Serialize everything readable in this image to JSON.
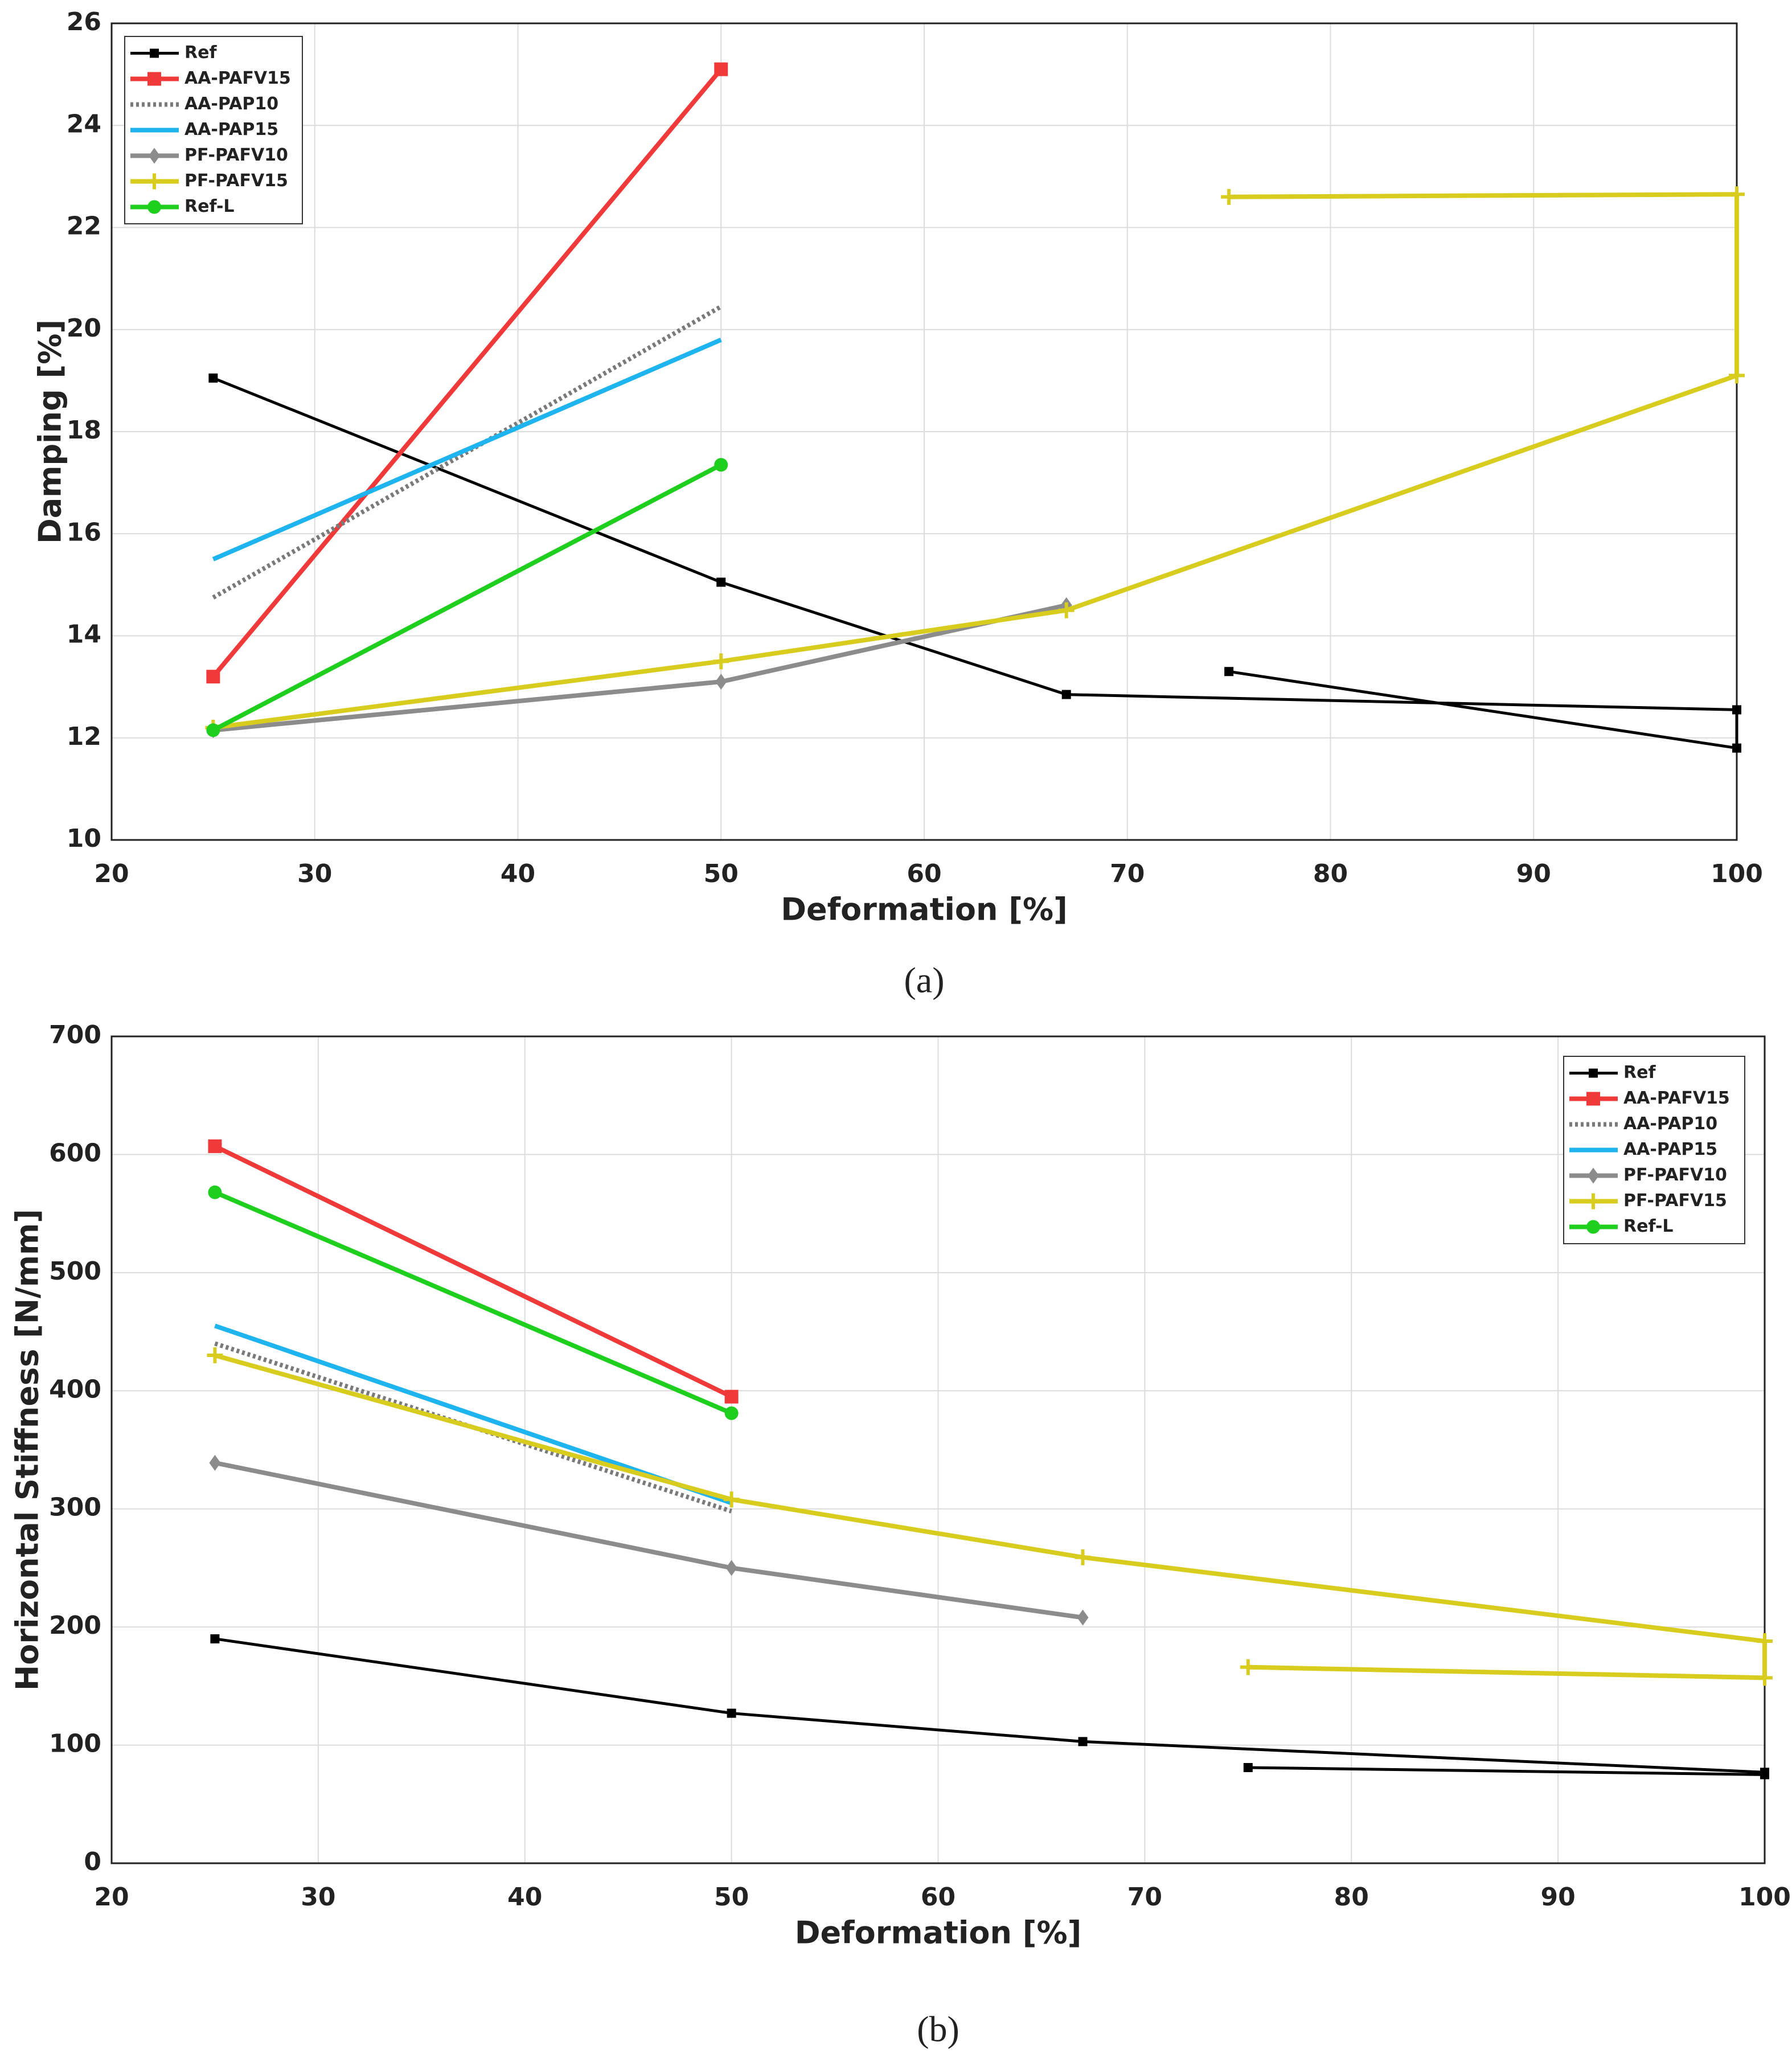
{
  "chart_data": [
    {
      "type": "line",
      "caption": "(a)",
      "xlabel": "Deformation [%]",
      "ylabel": "Damping [%]",
      "xlim": [
        20,
        100
      ],
      "xticks": [
        20,
        30,
        40,
        50,
        60,
        70,
        80,
        90,
        100
      ],
      "ylim": [
        10,
        26
      ],
      "yticks": [
        10,
        12,
        14,
        16,
        18,
        20,
        22,
        24,
        26
      ],
      "grid": true,
      "legend": "upper left",
      "series": [
        {
          "name": "Ref",
          "color": "#000000",
          "marker": "square",
          "x": [
            25,
            50,
            67,
            100,
            100,
            75
          ],
          "values": [
            19.05,
            15.05,
            12.85,
            12.55,
            11.8,
            13.3
          ]
        },
        {
          "name": "AA-PAFV15",
          "color": "#f03a3a",
          "marker": "bigsquare",
          "x": [
            25,
            50
          ],
          "values": [
            13.2,
            25.1
          ]
        },
        {
          "name": "AA-PAP10",
          "color": "#7a7a7a",
          "marker": "none",
          "dashed": true,
          "x": [
            25,
            50
          ],
          "values": [
            14.75,
            20.45
          ]
        },
        {
          "name": "AA-PAP15",
          "color": "#1eb4ef",
          "marker": "none",
          "x": [
            25,
            50
          ],
          "values": [
            15.5,
            19.8
          ]
        },
        {
          "name": "PF-PAFV10",
          "color": "#8c8c8c",
          "marker": "diamond",
          "x": [
            25,
            50,
            67
          ],
          "values": [
            12.15,
            13.1,
            14.6
          ]
        },
        {
          "name": "PF-PAFV15",
          "color": "#d8cc1e",
          "marker": "plus",
          "x": [
            25,
            50,
            67,
            100,
            100,
            75
          ],
          "values": [
            12.2,
            13.5,
            14.5,
            19.1,
            22.65,
            22.6
          ]
        },
        {
          "name": "Ref-L",
          "color": "#1ecf1e",
          "marker": "circle",
          "x": [
            25,
            50
          ],
          "values": [
            12.15,
            17.35
          ]
        }
      ]
    },
    {
      "type": "line",
      "caption": "(b)",
      "xlabel": "Deformation [%]",
      "ylabel": "Horizontal Stiffness [N/mm]",
      "xlim": [
        20,
        100
      ],
      "xticks": [
        20,
        30,
        40,
        50,
        60,
        70,
        80,
        90,
        100
      ],
      "ylim": [
        0,
        700
      ],
      "yticks": [
        0,
        100,
        200,
        300,
        400,
        500,
        600,
        700
      ],
      "grid": true,
      "legend": "upper right",
      "series": [
        {
          "name": "Ref",
          "color": "#000000",
          "marker": "square",
          "x": [
            25,
            50,
            67,
            100,
            100,
            75
          ],
          "values": [
            190,
            127,
            103,
            77,
            75,
            81
          ]
        },
        {
          "name": "AA-PAFV15",
          "color": "#f03a3a",
          "marker": "bigsquare",
          "x": [
            25,
            50
          ],
          "values": [
            607,
            395
          ]
        },
        {
          "name": "AA-PAP10",
          "color": "#7a7a7a",
          "marker": "none",
          "dashed": true,
          "x": [
            25,
            50
          ],
          "values": [
            440,
            298
          ]
        },
        {
          "name": "AA-PAP15",
          "color": "#1eb4ef",
          "marker": "none",
          "x": [
            25,
            50
          ],
          "values": [
            455,
            305
          ]
        },
        {
          "name": "PF-PAFV10",
          "color": "#8c8c8c",
          "marker": "diamond",
          "x": [
            25,
            50,
            67
          ],
          "values": [
            339,
            250,
            208
          ]
        },
        {
          "name": "PF-PAFV15",
          "color": "#d8cc1e",
          "marker": "plus",
          "x": [
            25,
            50,
            67,
            100,
            100,
            75
          ],
          "values": [
            430,
            308,
            259,
            188,
            157,
            166
          ]
        },
        {
          "name": "Ref-L",
          "color": "#1ecf1e",
          "marker": "circle",
          "x": [
            25,
            50
          ],
          "values": [
            568,
            381
          ]
        }
      ]
    }
  ]
}
